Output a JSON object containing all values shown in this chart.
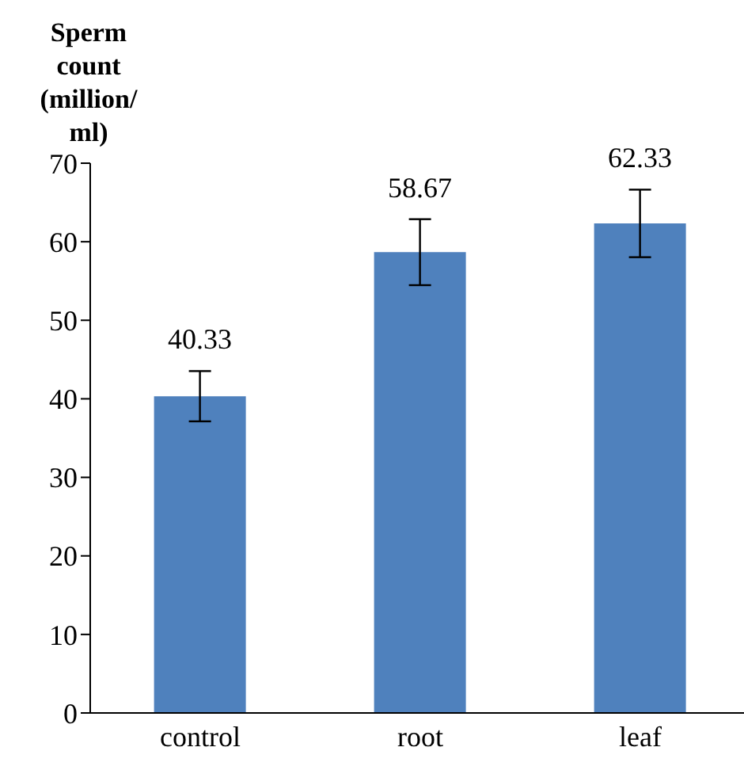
{
  "chart_data": {
    "type": "bar",
    "ylabel": "Sperm count (million/ ml)",
    "categories": [
      "control",
      "root",
      "leaf"
    ],
    "values": [
      40.33,
      58.67,
      62.33
    ],
    "errors": [
      3.2,
      4.2,
      4.3
    ],
    "color": "#4f81bd",
    "ylim": [
      0,
      70
    ],
    "yticks": [
      0,
      10,
      20,
      30,
      40,
      50,
      60,
      70
    ],
    "data_labels": true,
    "grid": false,
    "legend": false
  }
}
